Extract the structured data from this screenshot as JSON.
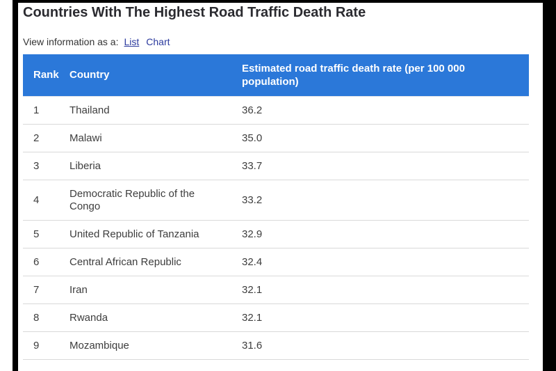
{
  "header": {
    "title": "Countries With The Highest Road Traffic Death Rate",
    "view_as_label": "View information as a:",
    "view_links": [
      {
        "label": "List",
        "active": true
      },
      {
        "label": "Chart",
        "active": false
      }
    ]
  },
  "table": {
    "columns": [
      "Rank",
      "Country",
      "Estimated road traffic death rate (per 100 000 population)"
    ],
    "rows": [
      {
        "rank": "1",
        "country": "Thailand",
        "rate": "36.2"
      },
      {
        "rank": "2",
        "country": "Malawi",
        "rate": "35.0"
      },
      {
        "rank": "3",
        "country": "Liberia",
        "rate": "33.7"
      },
      {
        "rank": "4",
        "country": "Democratic Republic of the Congo",
        "rate": "33.2"
      },
      {
        "rank": "5",
        "country": "United Republic of Tanzania",
        "rate": "32.9"
      },
      {
        "rank": "6",
        "country": "Central African Republic",
        "rate": "32.4"
      },
      {
        "rank": "7",
        "country": "Iran",
        "rate": "32.1"
      },
      {
        "rank": "8",
        "country": "Rwanda",
        "rate": "32.1"
      },
      {
        "rank": "9",
        "country": "Mozambique",
        "rate": "31.6"
      }
    ]
  },
  "colors": {
    "header_bg": "#2b78d9",
    "header_text": "#ffffff",
    "link": "#2b3a9e",
    "title_text": "#2b2b30",
    "body_text": "#3d3d3d",
    "row_divider": "#d9d9d9",
    "crop_edge": "#000000"
  },
  "chart_data": {
    "type": "table",
    "title": "Countries With The Highest Road Traffic Death Rate",
    "columns": [
      "Rank",
      "Country",
      "Estimated road traffic death rate (per 100 000 population)"
    ],
    "categories": [
      "Thailand",
      "Malawi",
      "Liberia",
      "Democratic Republic of the Congo",
      "United Republic of Tanzania",
      "Central African Republic",
      "Iran",
      "Rwanda",
      "Mozambique"
    ],
    "values": [
      36.2,
      35.0,
      33.7,
      33.2,
      32.9,
      32.4,
      32.1,
      32.1,
      31.6
    ],
    "xlabel": "Country",
    "ylabel": "Estimated road traffic death rate (per 100 000 population)",
    "legend_position": "none",
    "grid": false
  }
}
